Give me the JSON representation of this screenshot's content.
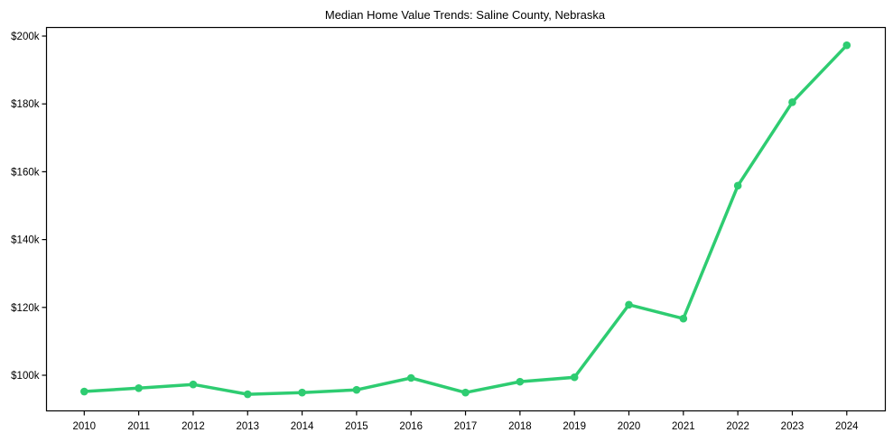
{
  "chart_data": {
    "type": "line",
    "title": "Median Home Value Trends: Saline County, Nebraska",
    "xlabel": "",
    "ylabel": "",
    "categories": [
      "2010",
      "2011",
      "2012",
      "2013",
      "2014",
      "2015",
      "2016",
      "2017",
      "2018",
      "2019",
      "2020",
      "2021",
      "2022",
      "2023",
      "2024"
    ],
    "series": [
      {
        "name": "Median Home Value",
        "color": "#2ecc71",
        "values": [
          95200,
          96200,
          97300,
          94400,
          94900,
          95700,
          99200,
          94900,
          98100,
          99400,
          120800,
          116700,
          155900,
          180500,
          197300
        ]
      }
    ],
    "ylim": [
      89500,
      202800
    ],
    "yticks": [
      100000,
      120000,
      140000,
      160000,
      180000,
      200000
    ],
    "ytick_labels": [
      "$100k",
      "$120k",
      "$140k",
      "$160k",
      "$180k",
      "$200k"
    ],
    "grid": false,
    "legend": null,
    "marker": "circle",
    "line_width": 3.5
  }
}
